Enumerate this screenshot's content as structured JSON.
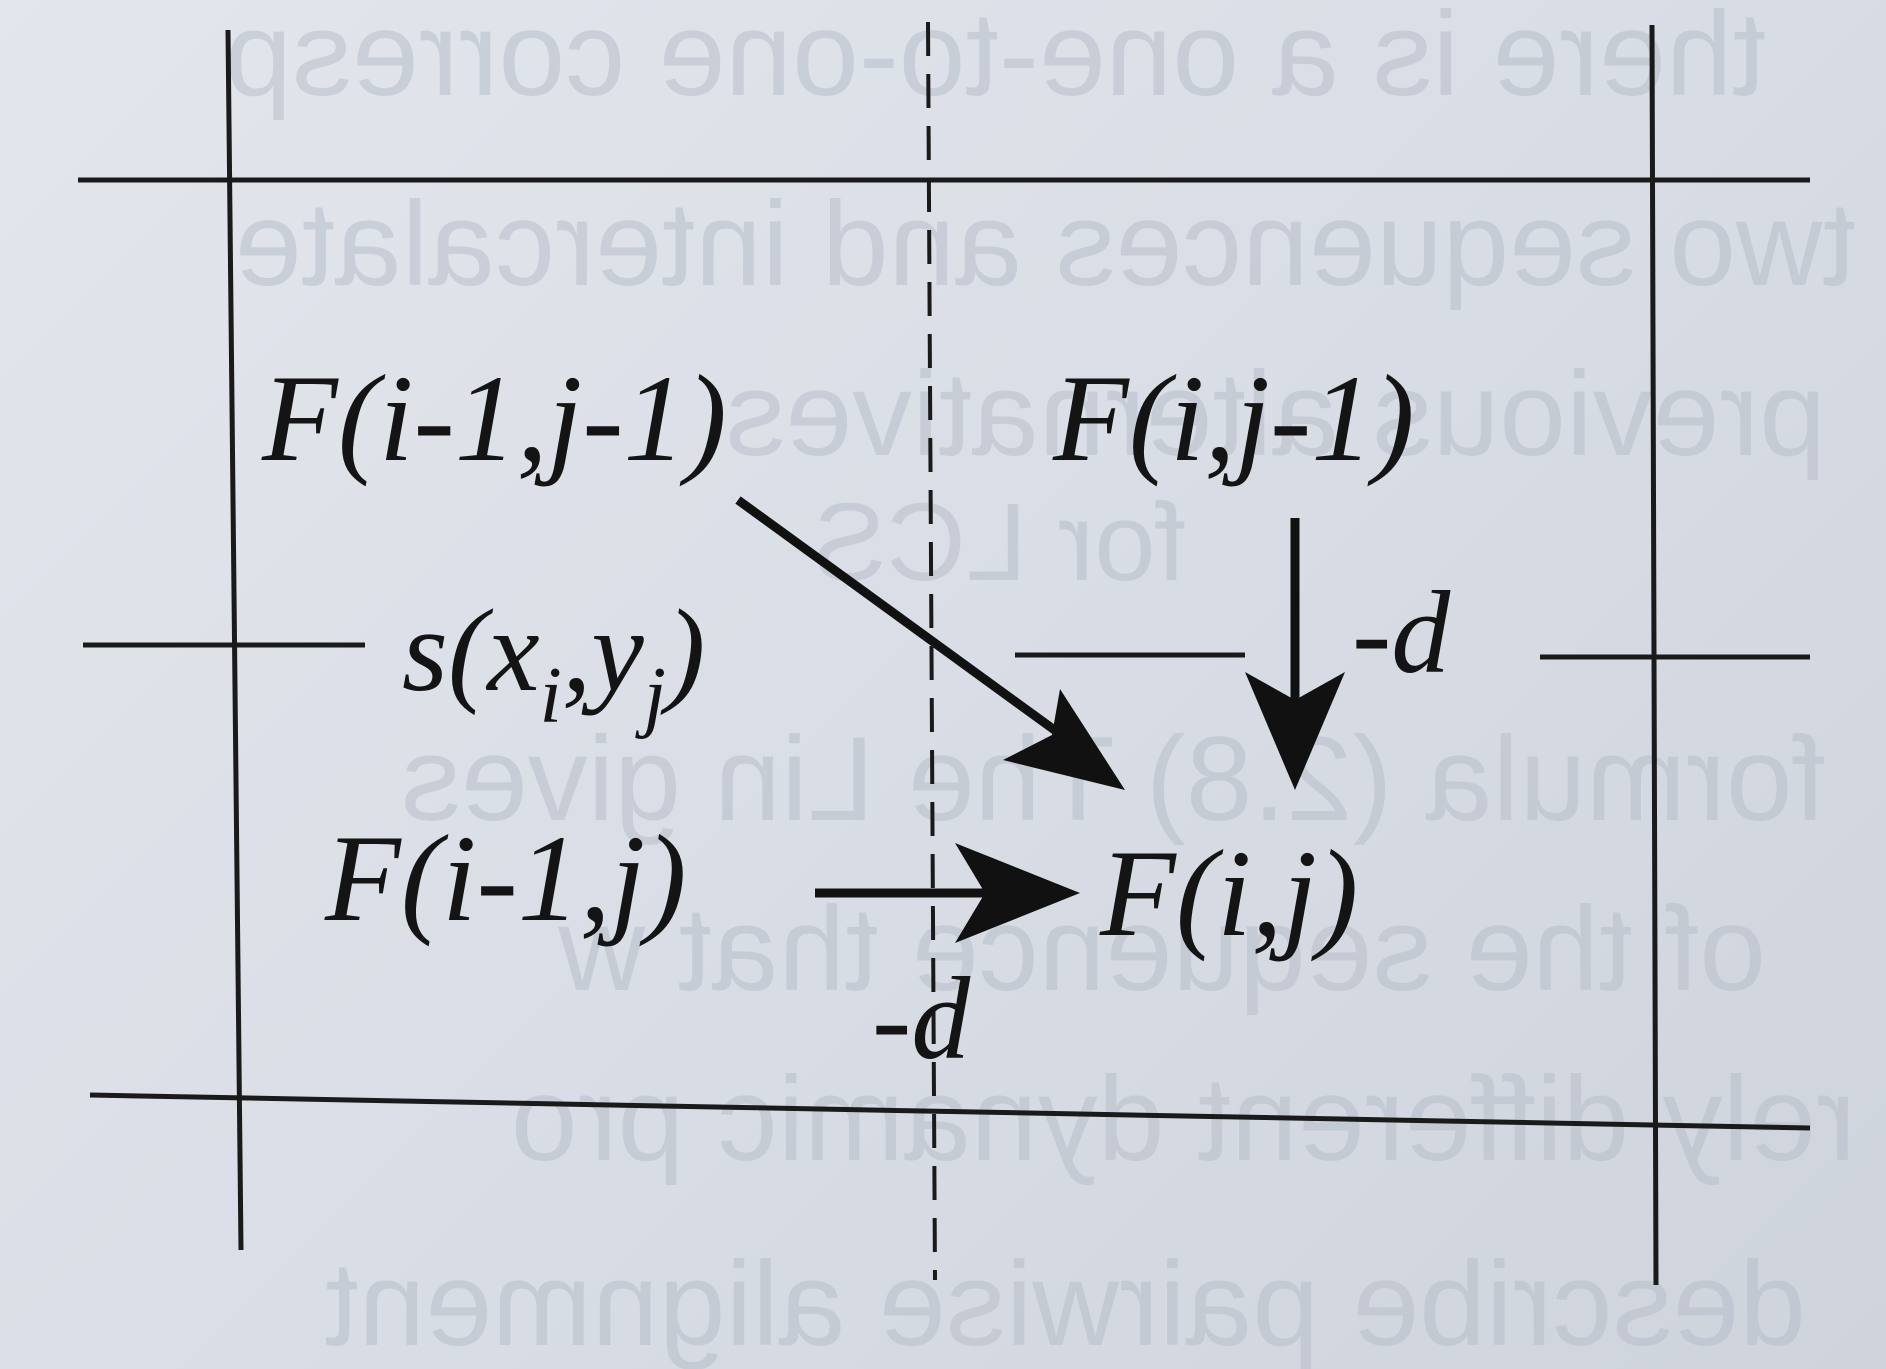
{
  "show_through": {
    "lines": [
      "there is a one-to-one corresp",
      "two sequences and intercalate",
      "previous alternatives",
      "for LCS",
      "formula (2.8) The Lin gives",
      "of the sequence that w",
      "rely different dynamic pro",
      "describe pairwise alignment"
    ]
  },
  "cells": {
    "diag": "F(i-1,j-1)",
    "up": "F(i,j-1)",
    "left": "F(i-1,j)",
    "target": "F(i,j)"
  },
  "labels": {
    "score": {
      "s": "s(",
      "x": "x",
      "i": "i",
      "comma": ",",
      "y": "y",
      "j": "j",
      "close": ")"
    },
    "gap_vertical": "-d",
    "gap_horizontal": "-d"
  },
  "colors": {
    "ink": "#141414",
    "paper": "#dfe3e9"
  }
}
